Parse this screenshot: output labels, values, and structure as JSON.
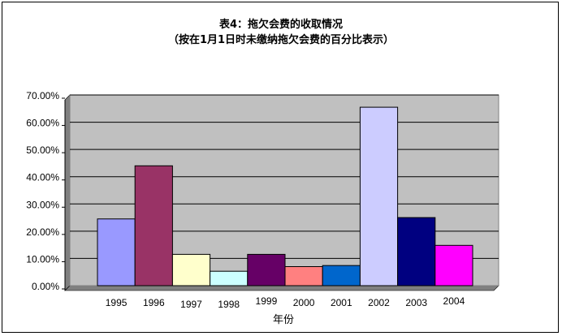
{
  "chart_data": {
    "type": "bar",
    "title": "表4：拖欠会费的收取情况",
    "subtitle": "（按在1月1日时未缴纳拖欠会费的百分比表示）",
    "xlabel": "年份",
    "ylabel": "",
    "categories": [
      "1995",
      "1996",
      "1997",
      "1998",
      "1999",
      "2000",
      "2001",
      "2002",
      "2003",
      "2004"
    ],
    "values": [
      24.5,
      44.0,
      11.5,
      5.3,
      11.5,
      7.0,
      7.4,
      65.5,
      25.0,
      14.8
    ],
    "ylim": [
      0,
      70
    ],
    "yticks": [
      0,
      10,
      20,
      30,
      40,
      50,
      60,
      70
    ],
    "ytick_labels": [
      "0.00%",
      "10.00%",
      "20.00%",
      "30.00%",
      "40.00%",
      "50.00%",
      "60.00%",
      "70.00%"
    ],
    "colors": [
      "#9999ff",
      "#993366",
      "#ffffcc",
      "#ccffff",
      "#660066",
      "#ff8080",
      "#0066cc",
      "#ccccff",
      "#000080",
      "#ff00ff"
    ],
    "plot_background": "#c0c0c0",
    "grid": true,
    "legend": "none"
  }
}
